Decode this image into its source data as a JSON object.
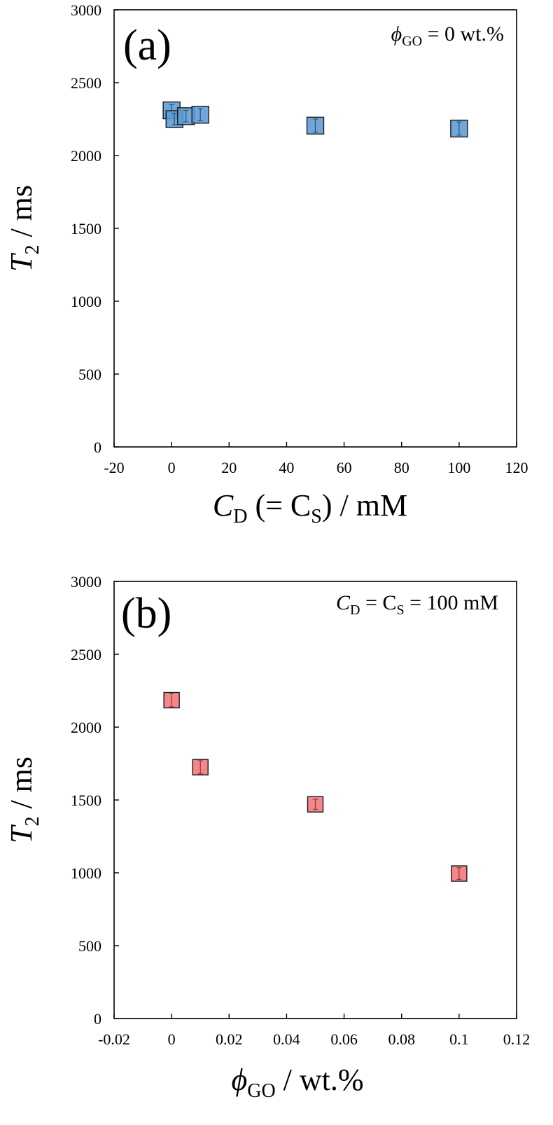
{
  "chart_data": [
    {
      "type": "scatter",
      "panel_label": "(a)",
      "condition": {
        "symbol": "ϕ",
        "sub": "GO",
        "rest": " = 0 wt.%"
      },
      "xlabel": {
        "main": "C",
        "sub": "D",
        "mid": " (= C",
        "sub2": "S",
        "rest": ") / mM"
      },
      "ylabel": {
        "main": "T",
        "sub": "2",
        "rest": " / ms"
      },
      "xlim": [
        -20,
        120
      ],
      "ylim": [
        0,
        3000
      ],
      "xticks": [
        -20,
        0,
        20,
        40,
        60,
        80,
        100,
        120
      ],
      "xtick_labels": [
        "-20",
        "0",
        "20",
        "40",
        "60",
        "80",
        "100",
        "120"
      ],
      "yticks": [
        0,
        500,
        1000,
        1500,
        2000,
        2500,
        3000
      ],
      "ytick_labels": [
        "0",
        "500",
        "1000",
        "1500",
        "2000",
        "2500",
        "3000"
      ],
      "marker_color": "#5b9bd5",
      "points": [
        {
          "x": 0,
          "y": 2310,
          "err": 40
        },
        {
          "x": 1,
          "y": 2250,
          "err": 40
        },
        {
          "x": 5,
          "y": 2270,
          "err": 40
        },
        {
          "x": 10,
          "y": 2280,
          "err": 40
        },
        {
          "x": 50,
          "y": 2205,
          "err": 45
        },
        {
          "x": 100,
          "y": 2185,
          "err": 45
        }
      ]
    },
    {
      "type": "scatter",
      "panel_label": "(b)",
      "condition": {
        "main": "C",
        "sub": "D",
        "mid": " = C",
        "sub2": "S",
        "rest": " = 100 mM"
      },
      "xlabel": {
        "symbol": "ϕ",
        "sub": "GO",
        "rest": " / wt.%"
      },
      "ylabel": {
        "main": "T",
        "sub": "2",
        "rest": " / ms"
      },
      "xlim": [
        -0.02,
        0.12
      ],
      "ylim": [
        0,
        3000
      ],
      "xticks": [
        -0.02,
        0,
        0.02,
        0.04,
        0.06,
        0.08,
        0.1,
        0.12
      ],
      "xtick_labels": [
        "-0.02",
        "0",
        "0.02",
        "0.04",
        "0.06",
        "0.08",
        "0.1",
        "0.12"
      ],
      "yticks": [
        0,
        500,
        1000,
        1500,
        2000,
        2500,
        3000
      ],
      "ytick_labels": [
        "0",
        "500",
        "1000",
        "1500",
        "2000",
        "2500",
        "3000"
      ],
      "marker_color": "#f4767a",
      "points": [
        {
          "x": 0,
          "y": 2185,
          "err": 45
        },
        {
          "x": 0.01,
          "y": 1725,
          "err": 45
        },
        {
          "x": 0.05,
          "y": 1470,
          "err": 35
        },
        {
          "x": 0.1,
          "y": 995,
          "err": 40
        }
      ]
    }
  ]
}
